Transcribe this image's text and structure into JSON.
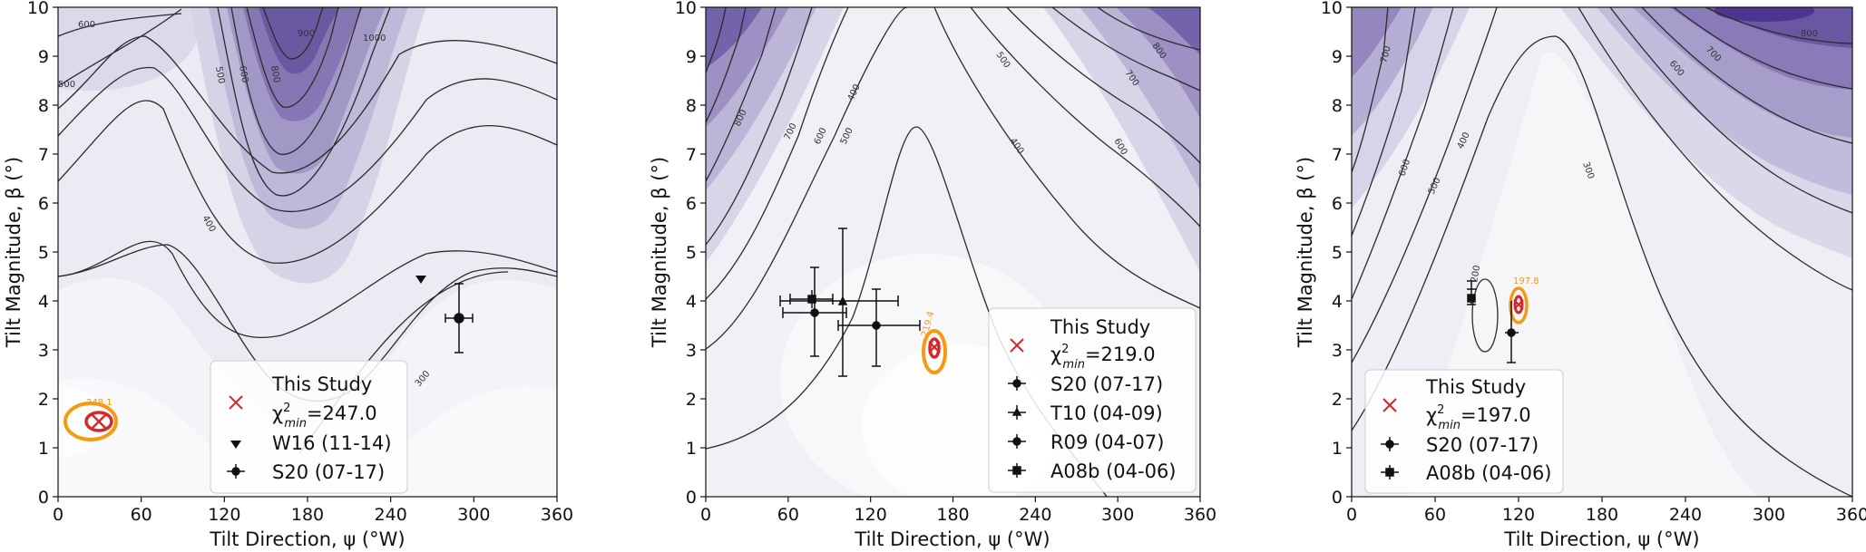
{
  "chart_data": [
    {
      "type": "contour",
      "xlabel": "Tilt Direction, ψ (°W)",
      "ylabel": "Tilt Magnitude, β (°)",
      "xlim": [
        0,
        360
      ],
      "ylim": [
        0,
        10
      ],
      "xticks": [
        "0",
        "60",
        "120",
        "180",
        "240",
        "300",
        "360"
      ],
      "yticks": [
        "0",
        "1",
        "2",
        "3",
        "4",
        "5",
        "6",
        "7",
        "8",
        "9",
        "10"
      ],
      "minimum": {
        "psi": 30,
        "beta": 1.6,
        "chi2": 247.0
      },
      "contour_labels": [
        "600",
        "500",
        "500",
        "600",
        "800",
        "900",
        "1000",
        "400",
        "300",
        "248.1"
      ],
      "legend": {
        "this_study": "This Study",
        "chi_label": "χ",
        "chi_sup": "2",
        "chi_sub": "min",
        "chi_value": "=247.0",
        "entries": [
          "W16 (11-14)",
          "S20 (07-17)"
        ]
      },
      "points": [
        {
          "label": "W16 (11-14)",
          "marker": "triangle-down",
          "psi": 265,
          "beta": 4.5
        },
        {
          "label": "S20 (07-17)",
          "marker": "circle",
          "psi": 292,
          "beta": 3.7,
          "psi_err": 10,
          "beta_err": 0.7
        }
      ]
    },
    {
      "type": "contour",
      "xlabel": "Tilt Direction, ψ (°W)",
      "ylabel": "Tilt Magnitude, β (°)",
      "xlim": [
        0,
        360
      ],
      "ylim": [
        0,
        10
      ],
      "xticks": [
        "0",
        "60",
        "120",
        "180",
        "240",
        "300",
        "360"
      ],
      "yticks": [
        "0",
        "1",
        "2",
        "3",
        "4",
        "5",
        "6",
        "7",
        "8",
        "9",
        "10"
      ],
      "minimum": {
        "psi": 165,
        "beta": 3.1,
        "chi2": 219.0
      },
      "contour_labels": [
        "500",
        "600",
        "700",
        "800",
        "400",
        "500",
        "400",
        "600",
        "700",
        "800",
        "219.4"
      ],
      "legend": {
        "this_study": "This Study",
        "chi_label": "χ",
        "chi_sup": "2",
        "chi_sub": "min",
        "chi_value": "=219.0",
        "entries": [
          "S20 (07-17)",
          "T10 (04-09)",
          "R09 (04-07)",
          "A08b (04-06)"
        ]
      },
      "points": [
        {
          "label": "S20 (07-17)",
          "marker": "circle",
          "psi": 125,
          "beta": 3.5,
          "psi_err": 25,
          "beta_err": 0.8
        },
        {
          "label": "T10 (04-09)",
          "marker": "plus",
          "psi": 100,
          "beta": 4.0,
          "psi_err": 18,
          "beta_err": 1.5
        },
        {
          "label": "R09 (04-07)",
          "marker": "circle",
          "psi": 80,
          "beta": 3.8,
          "psi_err": 20,
          "beta_err": 0.9
        },
        {
          "label": "A08b (04-06)",
          "marker": "square",
          "psi": 77,
          "beta": 4.1,
          "psi_err": 15,
          "beta_err": 0.2
        }
      ]
    },
    {
      "type": "contour",
      "xlabel": "Tilt Direction, ψ (°W)",
      "ylabel": "Tilt Magnitude, β (°)",
      "xlim": [
        0,
        360
      ],
      "ylim": [
        0,
        10
      ],
      "xticks": [
        "0",
        "60",
        "120",
        "180",
        "240",
        "300",
        "360"
      ],
      "yticks": [
        "0",
        "1",
        "2",
        "3",
        "4",
        "5",
        "6",
        "7",
        "8",
        "9",
        "10"
      ],
      "minimum": {
        "psi": 118,
        "beta": 4.0,
        "chi2": 197.0
      },
      "contour_labels": [
        "700",
        "600",
        "500",
        "400",
        "300",
        "200",
        "600",
        "700",
        "800",
        "197.8"
      ],
      "legend": {
        "this_study": "This Study",
        "chi_label": "χ",
        "chi_sup": "2",
        "chi_sub": "min",
        "chi_value": "=197.0",
        "entries": [
          "S20 (07-17)",
          "A08b (04-06)"
        ]
      },
      "points": [
        {
          "label": "S20 (07-17)",
          "marker": "circle",
          "psi": 116,
          "beta": 3.4,
          "psi_err": 4,
          "beta_err": 0.6
        },
        {
          "label": "A08b (04-06)",
          "marker": "square",
          "psi": 85,
          "beta": 4.1,
          "psi_err": 3,
          "beta_err": 0.2
        }
      ]
    }
  ],
  "colors": {
    "this_study": "#d62728",
    "chi2_contour_inner": "#d62728",
    "chi2_contour_outer": "#f39c12",
    "contour_line": "#2b2b2b",
    "fill_low": "#f8f8fb",
    "fill_high": "#4a2a8a"
  }
}
